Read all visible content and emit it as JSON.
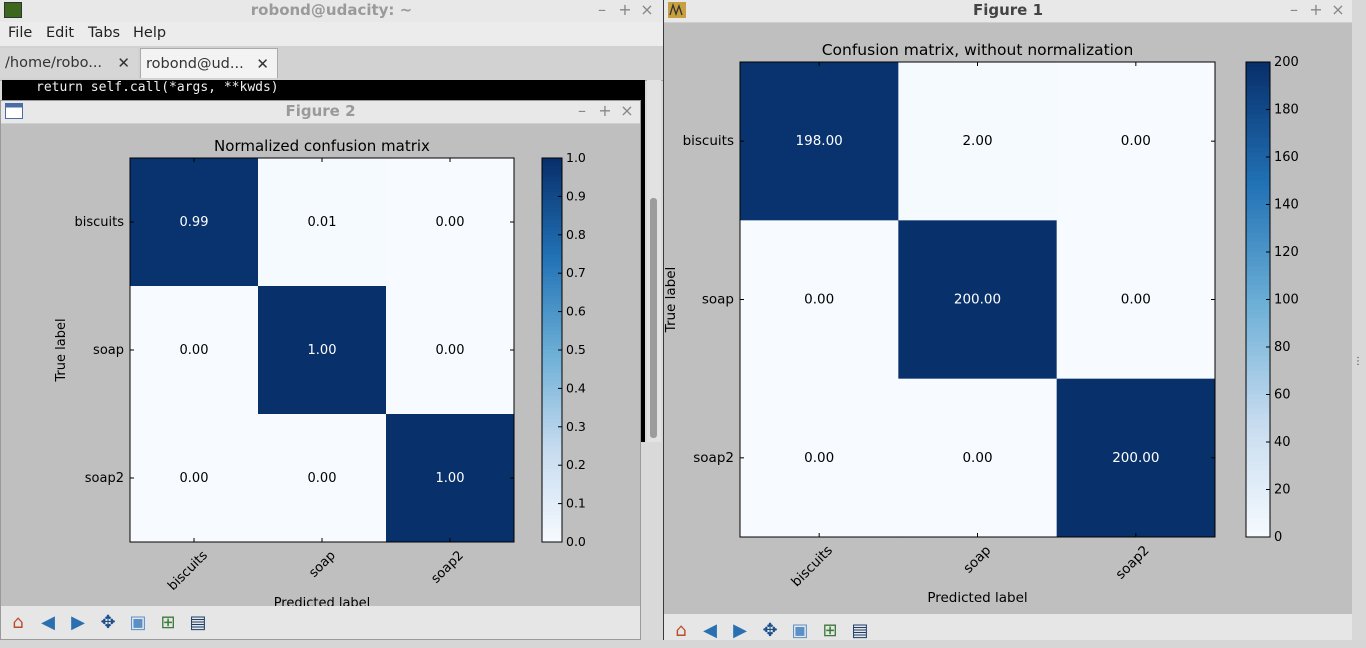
{
  "terminal": {
    "title": "robond@udacity: ~",
    "menu": [
      "File",
      "Edit",
      "Tabs",
      "Help"
    ],
    "tabs": [
      "/home/robo...",
      "robond@ud..."
    ],
    "line": "return self.call(*args, **kwds)"
  },
  "figure2": {
    "window_title": "Figure 2",
    "colorbar_ticks": [
      "1.0",
      "0.9",
      "0.8",
      "0.7",
      "0.6",
      "0.5",
      "0.4",
      "0.3",
      "0.2",
      "0.1",
      "0.0"
    ]
  },
  "figure1": {
    "window_title": "Figure 1",
    "colorbar_ticks": [
      "200",
      "180",
      "160",
      "140",
      "120",
      "100",
      "80",
      "60",
      "40",
      "20",
      "0"
    ]
  },
  "colors": {
    "dark": "#08306b",
    "light": "#f7fbff",
    "mid": "#6baed6"
  },
  "icons": [
    "home-icon",
    "back-icon",
    "forward-icon",
    "pan-icon",
    "zoom-icon",
    "configure-icon",
    "save-icon"
  ],
  "chart_data": [
    {
      "type": "heatmap",
      "title": "Normalized confusion matrix",
      "xlabel": "Predicted label",
      "ylabel": "True label",
      "x_categories": [
        "biscuits",
        "soap",
        "soap2"
      ],
      "y_categories": [
        "biscuits",
        "soap",
        "soap2"
      ],
      "values": [
        [
          0.99,
          0.01,
          0.0
        ],
        [
          0.0,
          1.0,
          0.0
        ],
        [
          0.0,
          0.0,
          1.0
        ]
      ],
      "value_labels": [
        [
          "0.99",
          "0.01",
          "0.00"
        ],
        [
          "0.00",
          "1.00",
          "0.00"
        ],
        [
          "0.00",
          "0.00",
          "1.00"
        ]
      ],
      "colorbar_range": [
        0,
        1
      ],
      "colormap": "Blues"
    },
    {
      "type": "heatmap",
      "title": "Confusion matrix, without normalization",
      "xlabel": "Predicted label",
      "ylabel": "True label",
      "x_categories": [
        "biscuits",
        "soap",
        "soap2"
      ],
      "y_categories": [
        "biscuits",
        "soap",
        "soap2"
      ],
      "values": [
        [
          198,
          2,
          0
        ],
        [
          0,
          200,
          0
        ],
        [
          0,
          0,
          200
        ]
      ],
      "value_labels": [
        [
          "198.00",
          "2.00",
          "0.00"
        ],
        [
          "0.00",
          "200.00",
          "0.00"
        ],
        [
          "0.00",
          "0.00",
          "200.00"
        ]
      ],
      "colorbar_range": [
        0,
        200
      ],
      "colormap": "Blues"
    }
  ]
}
